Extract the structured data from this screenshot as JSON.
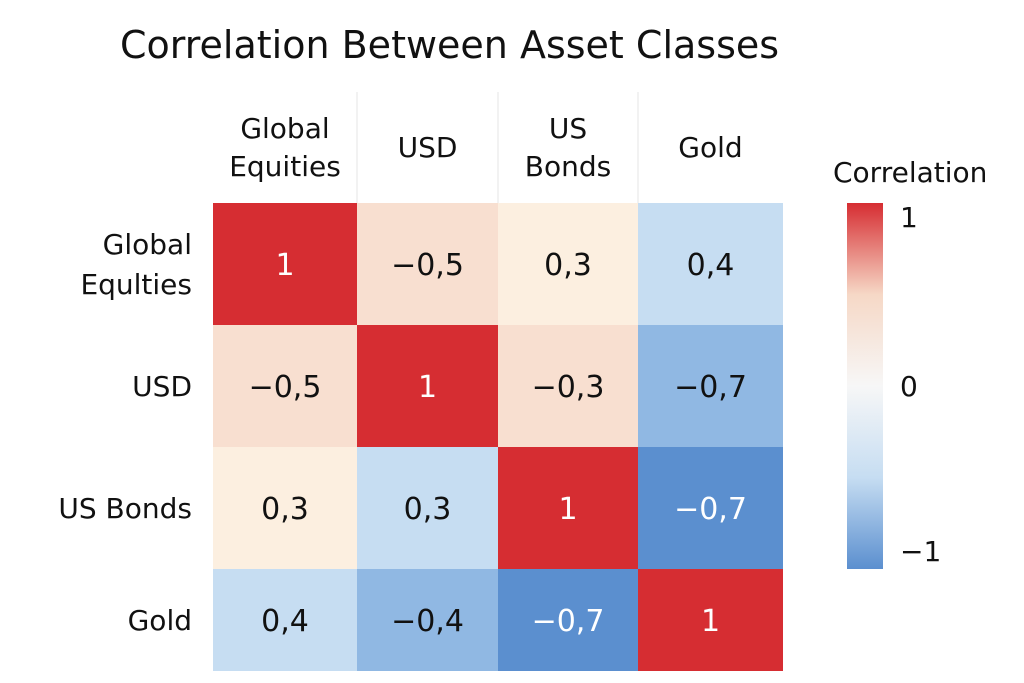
{
  "chart_data": {
    "type": "heatmap",
    "title": "Correlation Between Asset Classes",
    "column_labels": [
      [
        "Global",
        "Equities"
      ],
      [
        "USD"
      ],
      [
        "US",
        "Bonds"
      ],
      [
        "Gold"
      ]
    ],
    "row_labels": [
      [
        "Global",
        "Equlties"
      ],
      [
        "USD"
      ],
      [
        "US Bonds"
      ],
      [
        "Gold"
      ]
    ],
    "values": [
      [
        1,
        -0.5,
        0.3,
        0.4
      ],
      [
        -0.5,
        1,
        -0.3,
        -0.7
      ],
      [
        0.3,
        0.3,
        1,
        -0.7
      ],
      [
        0.4,
        -0.4,
        -0.7,
        1
      ]
    ],
    "cell_labels": [
      [
        "1",
        "−0,5",
        "0,3",
        "0,4"
      ],
      [
        "−0,5",
        "1",
        "−0,3",
        "−0,7"
      ],
      [
        "0,3",
        "0,3",
        "1",
        "−0,7"
      ],
      [
        "0,4",
        "−0,4",
        "−0,7",
        "1"
      ]
    ],
    "cell_colors": [
      [
        "#d62d32",
        "#f8dfd0",
        "#fcefe0",
        "#c6ddf2"
      ],
      [
        "#f8dfd0",
        "#d62d32",
        "#f8dfd0",
        "#90b8e3"
      ],
      [
        "#fcefe0",
        "#c6ddf2",
        "#d62d32",
        "#5b8fcf"
      ],
      [
        "#c6ddf2",
        "#90b8e3",
        "#5b8fcf",
        "#d62d32"
      ]
    ],
    "colorbar": {
      "title": "Correlation",
      "min": -1,
      "max": 1,
      "ticks": [
        {
          "value": 1,
          "label": "1"
        },
        {
          "value": 0,
          "label": "0"
        },
        {
          "value": -1,
          "label": "−1"
        }
      ],
      "gradient": [
        "#d62d32",
        "#f6d8c6",
        "#f7f7f7",
        "#c6ddf2",
        "#5b8fcf"
      ]
    }
  }
}
